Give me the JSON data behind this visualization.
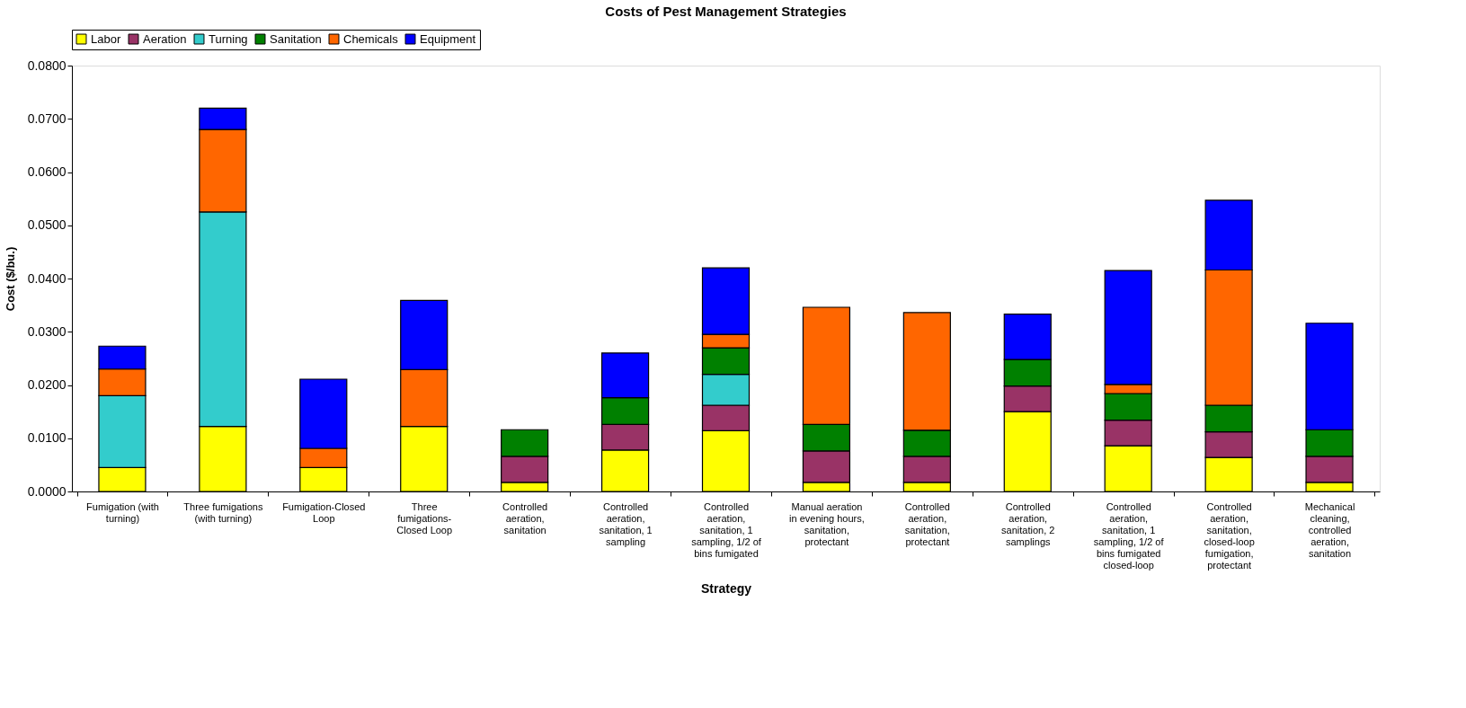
{
  "chart_data": {
    "type": "bar",
    "stacked": true,
    "title": "Costs of Pest Management Strategies",
    "xlabel": "Strategy",
    "ylabel": "Cost ($/bu.)",
    "categories": [
      "Fumigation (with turning)",
      "Three fumigations (with turning)",
      "Fumigation-Closed Loop",
      "Three fumigations-Closed Loop",
      "Controlled aeration, sanitation",
      "Controlled aeration, sanitation, 1 sampling",
      "Controlled aeration, sanitation, 1 sampling, 1/2 of bins fumigated",
      "Manual aeration in evening hours, sanitation, protectant",
      "Controlled aeration, sanitation, protectant",
      "Controlled aeration, sanitation, 2 samplings",
      "Controlled aeration, sanitation, 1 sampling, 1/2 of bins fumigated closed-loop",
      "Controlled aeration, sanitation, closed-loop fumigation, protectant",
      "Mechanical cleaning, controlled aeration, sanitation"
    ],
    "series": [
      {
        "name": "Labor",
        "color": "#ffff00",
        "values": [
          0.0045,
          0.0122,
          0.0045,
          0.0122,
          0.0017,
          0.0078,
          0.0114,
          0.0017,
          0.0017,
          0.015,
          0.0086,
          0.0064,
          0.0017
        ]
      },
      {
        "name": "Aeration",
        "color": "#993366",
        "values": [
          null,
          null,
          null,
          null,
          0.0049,
          0.0048,
          0.0048,
          0.0059,
          0.0049,
          0.0048,
          0.0048,
          0.0048,
          0.0049
        ]
      },
      {
        "name": "Turning",
        "color": "#33cccc",
        "values": [
          0.0135,
          0.0403,
          null,
          null,
          null,
          null,
          0.0058,
          null,
          null,
          null,
          null,
          null,
          null
        ]
      },
      {
        "name": "Sanitation",
        "color": "#008000",
        "values": [
          null,
          null,
          null,
          null,
          0.005,
          0.005,
          0.005,
          0.005,
          0.0049,
          0.005,
          0.005,
          0.005,
          0.005
        ]
      },
      {
        "name": "Chemicals",
        "color": "#ff6600",
        "values": [
          0.005,
          0.0155,
          0.0036,
          0.0107,
          null,
          null,
          0.0025,
          0.022,
          0.0221,
          null,
          0.0017,
          0.0254,
          null
        ]
      },
      {
        "name": "Equipment",
        "color": "#0000ff",
        "values": [
          0.0043,
          0.004,
          0.013,
          0.013,
          null,
          0.0084,
          0.0125,
          null,
          null,
          0.0085,
          0.0214,
          0.0131,
          0.02
        ]
      }
    ],
    "ylim": [
      0,
      0.08
    ],
    "yticks": [
      {
        "value": 0,
        "label": "0.0000"
      },
      {
        "value": 0.01,
        "label": "0.0100"
      },
      {
        "value": 0.02,
        "label": "0.0200"
      },
      {
        "value": 0.03,
        "label": "0.0300"
      },
      {
        "value": 0.04,
        "label": "0.0400"
      },
      {
        "value": 0.05,
        "label": "0.0500"
      },
      {
        "value": 0.06,
        "label": "0.0600"
      },
      {
        "value": 0.07,
        "label": "0.0700"
      },
      {
        "value": 0.08,
        "label": "0.0800"
      }
    ],
    "legend": "top",
    "grid": false
  }
}
